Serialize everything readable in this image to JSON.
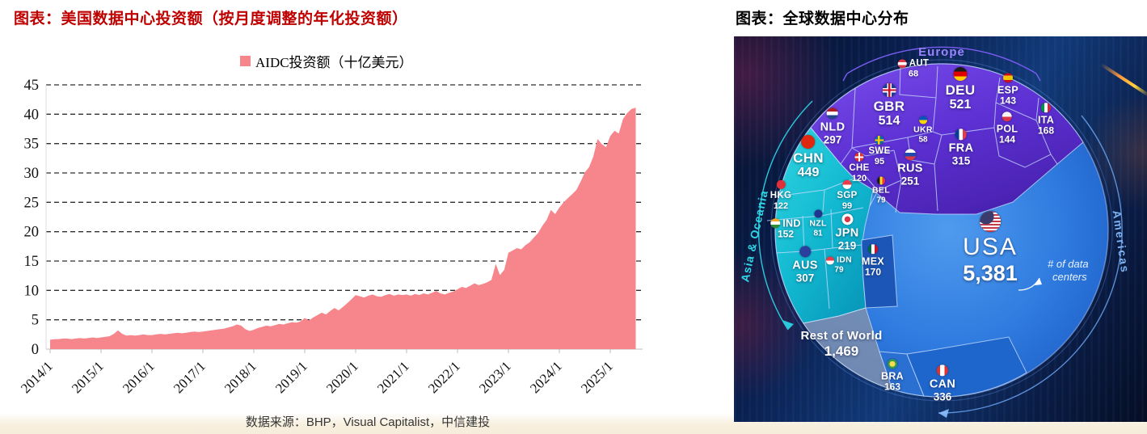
{
  "chart_data": [
    {
      "type": "area",
      "title": "图表：美国数据中心投资额（按月度调整的年化投资额）",
      "title_color": "#bf0000",
      "legend": {
        "label": "AIDC投资额（十亿美元）",
        "swatch_color": "#f6868c",
        "position": "top-center"
      },
      "source": "数据来源：BHP，Visual  Capitalist，中信建投",
      "ylim": [
        0,
        45
      ],
      "yticks": [
        0,
        5,
        10,
        15,
        20,
        25,
        30,
        35,
        40,
        45
      ],
      "grid": "horizontal-dashed",
      "x_tick_labels": [
        "2014/1",
        "2015/1",
        "2016/1",
        "2017/1",
        "2018/1",
        "2019/1",
        "2020/1",
        "2021/1",
        "2022/1",
        "2023/1",
        "2024/1",
        "2025/1"
      ],
      "x_monthly_start": "2014/1",
      "x_monthly_end": "2025/7",
      "series": [
        {
          "name": "AIDC投资额（十亿美元）",
          "color": "#f6868c",
          "values": [
            1.6,
            1.7,
            1.7,
            1.8,
            1.8,
            1.7,
            1.8,
            1.9,
            1.8,
            1.9,
            2.0,
            1.9,
            2.0,
            2.1,
            2.2,
            2.6,
            3.2,
            2.6,
            2.3,
            2.4,
            2.3,
            2.4,
            2.5,
            2.4,
            2.4,
            2.5,
            2.6,
            2.5,
            2.6,
            2.7,
            2.8,
            2.7,
            2.8,
            2.9,
            3.0,
            2.9,
            3.0,
            3.1,
            3.2,
            3.3,
            3.4,
            3.5,
            3.7,
            3.9,
            4.2,
            4.0,
            3.4,
            3.1,
            3.3,
            3.6,
            3.8,
            4.0,
            3.9,
            4.1,
            4.3,
            4.2,
            4.4,
            4.6,
            4.5,
            4.7,
            5.3,
            4.9,
            5.4,
            5.8,
            6.2,
            5.9,
            6.5,
            7.0,
            6.6,
            7.2,
            7.8,
            8.5,
            9.2,
            9.0,
            8.8,
            9.1,
            9.3,
            9.0,
            8.9,
            9.2,
            9.4,
            9.1,
            9.3,
            9.2,
            9.3,
            9.1,
            9.4,
            9.2,
            9.5,
            9.3,
            9.6,
            9.9,
            9.5,
            9.3,
            9.6,
            9.8,
            10.2,
            10.6,
            10.4,
            10.8,
            11.2,
            10.9,
            11.1,
            11.4,
            11.8,
            14.5,
            12.6,
            13.5,
            16.4,
            16.8,
            17.2,
            17.0,
            17.7,
            18.2,
            19.0,
            19.8,
            21.0,
            22.0,
            23.7,
            23.0,
            24.1,
            25.0,
            25.7,
            26.4,
            27.1,
            28.5,
            30.1,
            31.0,
            32.8,
            35.8,
            34.9,
            34.4,
            36.3,
            37.2,
            36.7,
            39.2,
            40.2,
            40.9,
            41.1
          ]
        }
      ]
    },
    {
      "type": "voronoi_treemap",
      "title": "图表：全球数据中心分布",
      "annotation": "# of data centers",
      "regions": [
        {
          "name": "Europe",
          "color": "#5b2fd0",
          "label_color": "#9b84ff",
          "countries": [
            {
              "code": "GBR",
              "value": 514,
              "icon": "flag-gbr"
            },
            {
              "code": "DEU",
              "value": 521,
              "icon": "flag-deu"
            },
            {
              "code": "AUT",
              "value": 68,
              "icon": "flag-aut"
            },
            {
              "code": "ESP",
              "value": 143,
              "icon": "flag-esp"
            },
            {
              "code": "ITA",
              "value": 168,
              "icon": "flag-ita"
            },
            {
              "code": "NLD",
              "value": 297,
              "icon": "flag-nld"
            },
            {
              "code": "UKR",
              "value": 58,
              "icon": "flag-ukr"
            },
            {
              "code": "POL",
              "value": 144,
              "icon": "flag-pol"
            },
            {
              "code": "FRA",
              "value": 315,
              "icon": "flag-fra"
            },
            {
              "code": "SWE",
              "value": 95,
              "icon": "flag-swe"
            },
            {
              "code": "CHE",
              "value": 120,
              "icon": "flag-che"
            },
            {
              "code": "RUS",
              "value": 251,
              "icon": "flag-rus"
            },
            {
              "code": "BEL",
              "value": 79,
              "icon": "flag-bel"
            }
          ]
        },
        {
          "name": "Asia & Oceania",
          "color": "#10b6cf",
          "label_color": "#2fd8e6",
          "countries": [
            {
              "code": "CHN",
              "value": 449,
              "icon": "flag-chn"
            },
            {
              "code": "HKG",
              "value": 122,
              "icon": "flag-hkg"
            },
            {
              "code": "SGP",
              "value": 99,
              "icon": "flag-sgp"
            },
            {
              "code": "IND",
              "value": 152,
              "icon": "flag-ind"
            },
            {
              "code": "NZL",
              "value": 81,
              "icon": "flag-nzl"
            },
            {
              "code": "JPN",
              "value": 219,
              "icon": "flag-jpn"
            },
            {
              "code": "AUS",
              "value": 307,
              "icon": "flag-aus"
            },
            {
              "code": "IDN",
              "value": 79,
              "icon": "flag-idn"
            }
          ]
        },
        {
          "name": "Americas",
          "color": "#2f7ade",
          "label_color": "#7eb2f2",
          "countries": [
            {
              "code": "USA",
              "value": 5381,
              "icon": "flag-usa"
            },
            {
              "code": "MEX",
              "value": 170,
              "icon": "flag-mex"
            },
            {
              "code": "BRA",
              "value": 163,
              "icon": "flag-bra"
            },
            {
              "code": "CAN",
              "value": 336,
              "icon": "flag-can"
            }
          ]
        },
        {
          "name": "Rest of World",
          "color": "#7e8fae",
          "label_color": "#eef2f8",
          "countries": [
            {
              "code": "ROW",
              "label": "Rest of World",
              "value": 1469,
              "icon": null
            }
          ]
        }
      ]
    }
  ]
}
